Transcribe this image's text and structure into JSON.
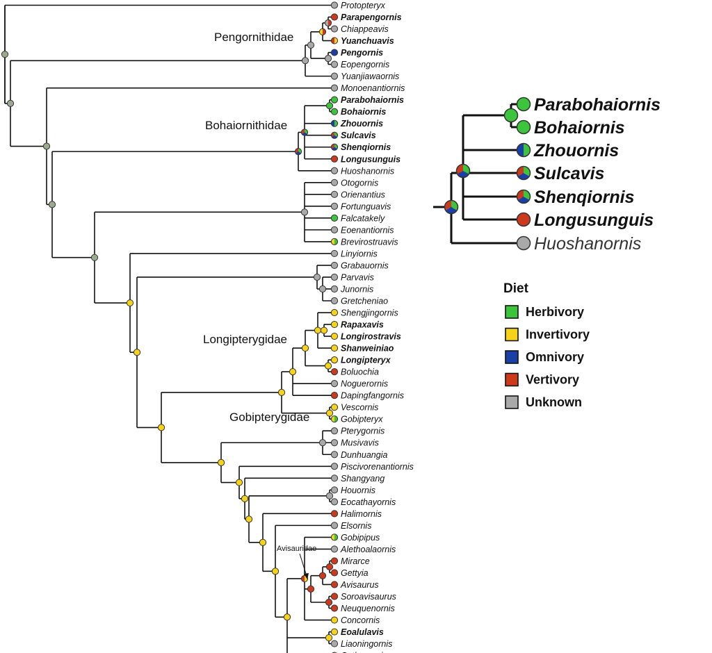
{
  "colors": {
    "herbivory": "#3cc43c",
    "invertivory": "#f5d31a",
    "omnivory": "#1a3fa6",
    "vertivory": "#cc3a1e",
    "unknown": "#a9a9a9",
    "ancestral": "#9aab8c"
  },
  "tree": {
    "taxa": [
      {
        "name": "Protopteryx",
        "bold": false,
        "state": [
          "unknown"
        ]
      },
      {
        "name": "Parapengornis",
        "bold": true,
        "state": [
          "vertivory"
        ]
      },
      {
        "name": "Chiappeavis",
        "bold": false,
        "state": [
          "unknown"
        ]
      },
      {
        "name": "Yuanchuavis",
        "bold": true,
        "state": [
          "invertivory",
          "vertivory"
        ]
      },
      {
        "name": "Pengornis",
        "bold": true,
        "state": [
          "omnivory"
        ]
      },
      {
        "name": "Eopengornis",
        "bold": false,
        "state": [
          "unknown"
        ]
      },
      {
        "name": "Yuanjiawaornis",
        "bold": false,
        "state": [
          "unknown"
        ]
      },
      {
        "name": "Monoenantiornis",
        "bold": false,
        "state": [
          "unknown"
        ]
      },
      {
        "name": "Parabohaiornis",
        "bold": true,
        "state": [
          "herbivory"
        ]
      },
      {
        "name": "Bohaiornis",
        "bold": true,
        "state": [
          "herbivory"
        ]
      },
      {
        "name": "Zhouornis",
        "bold": true,
        "state": [
          "herbivory",
          "omnivory"
        ]
      },
      {
        "name": "Sulcavis",
        "bold": true,
        "state": [
          "herbivory",
          "omnivory",
          "vertivory"
        ]
      },
      {
        "name": "Shenqiornis",
        "bold": true,
        "state": [
          "herbivory",
          "omnivory",
          "vertivory"
        ]
      },
      {
        "name": "Longusunguis",
        "bold": true,
        "state": [
          "vertivory"
        ]
      },
      {
        "name": "Huoshanornis",
        "bold": false,
        "state": [
          "unknown"
        ]
      },
      {
        "name": "Otogornis",
        "bold": false,
        "state": [
          "unknown"
        ]
      },
      {
        "name": "Orienantius",
        "bold": false,
        "state": [
          "unknown"
        ]
      },
      {
        "name": "Fortunguavis",
        "bold": false,
        "state": [
          "unknown"
        ]
      },
      {
        "name": "Falcatakely",
        "bold": false,
        "state": [
          "herbivory"
        ]
      },
      {
        "name": "Eoenantiornis",
        "bold": false,
        "state": [
          "unknown"
        ]
      },
      {
        "name": "Brevirostruavis",
        "bold": false,
        "state": [
          "herbivory",
          "invertivory"
        ]
      },
      {
        "name": "Linyiornis",
        "bold": false,
        "state": [
          "unknown"
        ]
      },
      {
        "name": "Grabauornis",
        "bold": false,
        "state": [
          "unknown"
        ]
      },
      {
        "name": "Parvavis",
        "bold": false,
        "state": [
          "unknown"
        ]
      },
      {
        "name": "Junornis",
        "bold": false,
        "state": [
          "unknown"
        ]
      },
      {
        "name": "Gretcheniao",
        "bold": false,
        "state": [
          "unknown"
        ]
      },
      {
        "name": "Shengjingornis",
        "bold": false,
        "state": [
          "invertivory"
        ]
      },
      {
        "name": "Rapaxavis",
        "bold": true,
        "state": [
          "invertivory"
        ]
      },
      {
        "name": "Longirostravis",
        "bold": true,
        "state": [
          "invertivory"
        ]
      },
      {
        "name": "Shanweiniao",
        "bold": true,
        "state": [
          "invertivory"
        ]
      },
      {
        "name": "Longipteryx",
        "bold": true,
        "state": [
          "invertivory"
        ]
      },
      {
        "name": "Boluochia",
        "bold": false,
        "state": [
          "vertivory"
        ]
      },
      {
        "name": "Noguerornis",
        "bold": false,
        "state": [
          "unknown"
        ]
      },
      {
        "name": "Dapingfangornis",
        "bold": false,
        "state": [
          "vertivory"
        ]
      },
      {
        "name": "Vescornis",
        "bold": false,
        "state": [
          "invertivory"
        ]
      },
      {
        "name": "Gobipteryx",
        "bold": false,
        "state": [
          "herbivory",
          "invertivory"
        ]
      },
      {
        "name": "Pterygornis",
        "bold": false,
        "state": [
          "unknown"
        ]
      },
      {
        "name": "Musivavis",
        "bold": false,
        "state": [
          "unknown"
        ]
      },
      {
        "name": "Dunhuangia",
        "bold": false,
        "state": [
          "unknown"
        ]
      },
      {
        "name": "Piscivorenantiornis",
        "bold": false,
        "state": [
          "unknown"
        ]
      },
      {
        "name": "Shangyang",
        "bold": false,
        "state": [
          "unknown"
        ]
      },
      {
        "name": "Houornis",
        "bold": false,
        "state": [
          "unknown"
        ]
      },
      {
        "name": "Eocathayornis",
        "bold": false,
        "state": [
          "unknown"
        ]
      },
      {
        "name": "Halimornis",
        "bold": false,
        "state": [
          "vertivory"
        ]
      },
      {
        "name": "Elsornis",
        "bold": false,
        "state": [
          "unknown"
        ]
      },
      {
        "name": "Gobipipus",
        "bold": false,
        "state": [
          "herbivory",
          "invertivory"
        ]
      },
      {
        "name": "Alethoalaornis",
        "bold": false,
        "state": [
          "unknown"
        ]
      },
      {
        "name": "Mirarce",
        "bold": false,
        "state": [
          "vertivory"
        ]
      },
      {
        "name": "Gettyia",
        "bold": false,
        "state": [
          "vertivory"
        ]
      },
      {
        "name": "Avisaurus",
        "bold": false,
        "state": [
          "vertivory"
        ]
      },
      {
        "name": "Soroavisaurus",
        "bold": false,
        "state": [
          "vertivory"
        ]
      },
      {
        "name": "Neuquenornis",
        "bold": false,
        "state": [
          "vertivory"
        ]
      },
      {
        "name": "Concornis",
        "bold": false,
        "state": [
          "invertivory"
        ]
      },
      {
        "name": "Eoalulavis",
        "bold": true,
        "state": [
          "invertivory"
        ]
      },
      {
        "name": "Liaoningornis",
        "bold": false,
        "state": [
          "unknown"
        ]
      },
      {
        "name": "Cathayornis",
        "bold": false,
        "state": [
          "invertivory",
          "vertivory"
        ]
      }
    ],
    "clade_labels": {
      "pengornithidae": "Pengornithidae",
      "bohaiornithidae": "Bohaiornithidae",
      "longipterygidae": "Longipterygidae",
      "gobipterygidae": "Gobipterygidae",
      "avisauridae": "Avisauridae"
    }
  },
  "inset": {
    "taxa": [
      {
        "name": "Parabohaiornis",
        "bold": true,
        "state": [
          "herbivory"
        ]
      },
      {
        "name": "Bohaiornis",
        "bold": true,
        "state": [
          "herbivory"
        ]
      },
      {
        "name": "Zhouornis",
        "bold": true,
        "state": [
          "herbivory",
          "omnivory"
        ]
      },
      {
        "name": "Sulcavis",
        "bold": true,
        "state": [
          "herbivory",
          "omnivory",
          "vertivory"
        ]
      },
      {
        "name": "Shenqiornis",
        "bold": true,
        "state": [
          "herbivory",
          "omnivory",
          "vertivory"
        ]
      },
      {
        "name": "Longusunguis",
        "bold": true,
        "state": [
          "vertivory"
        ]
      },
      {
        "name": "Huoshanornis",
        "bold": false,
        "state": [
          "unknown"
        ]
      }
    ]
  },
  "legend": {
    "title": "Diet",
    "items": [
      {
        "label": "Herbivory",
        "color": "#3cc43c"
      },
      {
        "label": "Invertivory",
        "color": "#f5d31a"
      },
      {
        "label": "Omnivory",
        "color": "#1a3fa6"
      },
      {
        "label": "Vertivory",
        "color": "#cc3a1e"
      },
      {
        "label": "Unknown",
        "color": "#a9a9a9"
      }
    ]
  }
}
